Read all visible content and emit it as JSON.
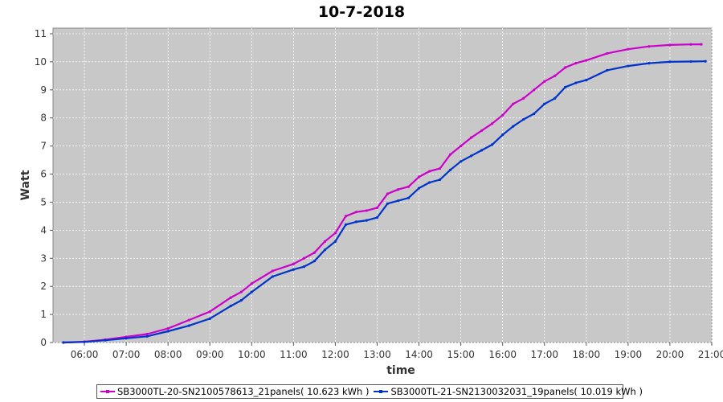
{
  "chart_data": {
    "type": "line",
    "title": "10-7-2018",
    "xlabel": "time",
    "ylabel": "Watt",
    "xlim": [
      5.25,
      21.0
    ],
    "ylim": [
      0,
      11.2
    ],
    "x_ticks": [
      "06:00",
      "07:00",
      "08:00",
      "09:00",
      "10:00",
      "11:00",
      "12:00",
      "13:00",
      "14:00",
      "15:00",
      "16:00",
      "17:00",
      "18:00",
      "19:00",
      "20:00",
      "21:00"
    ],
    "y_ticks": [
      0,
      1,
      2,
      3,
      4,
      5,
      6,
      7,
      8,
      9,
      10,
      11
    ],
    "grid": true,
    "legend_position": "bottom",
    "series": [
      {
        "name": "SB3000TL-20-SN2100578613_21panels( 10.623 kWh )",
        "color": "#cc00cc",
        "x": [
          5.5,
          6.0,
          6.5,
          7.0,
          7.5,
          8.0,
          8.5,
          9.0,
          9.5,
          9.75,
          10.0,
          10.5,
          11.0,
          11.25,
          11.5,
          11.75,
          12.0,
          12.25,
          12.5,
          12.75,
          13.0,
          13.25,
          13.5,
          13.75,
          14.0,
          14.25,
          14.5,
          14.75,
          15.0,
          15.25,
          15.5,
          15.75,
          16.0,
          16.25,
          16.5,
          16.75,
          17.0,
          17.25,
          17.5,
          17.75,
          18.0,
          18.5,
          19.0,
          19.5,
          20.0,
          20.5,
          20.75
        ],
        "y": [
          0.0,
          0.03,
          0.1,
          0.2,
          0.3,
          0.5,
          0.8,
          1.1,
          1.6,
          1.8,
          2.1,
          2.55,
          2.8,
          3.0,
          3.2,
          3.6,
          3.9,
          4.5,
          4.65,
          4.7,
          4.8,
          5.3,
          5.45,
          5.55,
          5.9,
          6.1,
          6.2,
          6.7,
          7.0,
          7.3,
          7.55,
          7.8,
          8.1,
          8.5,
          8.7,
          9.0,
          9.3,
          9.5,
          9.8,
          9.95,
          10.05,
          10.3,
          10.45,
          10.55,
          10.6,
          10.62,
          10.623
        ]
      },
      {
        "name": "SB3000TL-21-SN2130032031_19panels( 10.019 kWh )",
        "color": "#0033cc",
        "x": [
          5.5,
          6.0,
          6.5,
          7.0,
          7.5,
          8.0,
          8.5,
          9.0,
          9.5,
          9.75,
          10.0,
          10.5,
          11.0,
          11.25,
          11.5,
          11.75,
          12.0,
          12.25,
          12.5,
          12.75,
          13.0,
          13.25,
          13.5,
          13.75,
          14.0,
          14.25,
          14.5,
          14.75,
          15.0,
          15.25,
          15.5,
          15.75,
          16.0,
          16.25,
          16.5,
          16.75,
          17.0,
          17.25,
          17.5,
          17.75,
          18.0,
          18.5,
          19.0,
          19.5,
          20.0,
          20.5,
          20.85
        ],
        "y": [
          0.0,
          0.02,
          0.08,
          0.15,
          0.22,
          0.4,
          0.6,
          0.85,
          1.3,
          1.5,
          1.8,
          2.35,
          2.6,
          2.7,
          2.9,
          3.3,
          3.6,
          4.2,
          4.3,
          4.35,
          4.45,
          4.95,
          5.05,
          5.15,
          5.5,
          5.7,
          5.8,
          6.15,
          6.45,
          6.65,
          6.85,
          7.05,
          7.4,
          7.7,
          7.95,
          8.15,
          8.5,
          8.7,
          9.1,
          9.25,
          9.35,
          9.7,
          9.85,
          9.95,
          10.0,
          10.01,
          10.019
        ]
      }
    ]
  }
}
